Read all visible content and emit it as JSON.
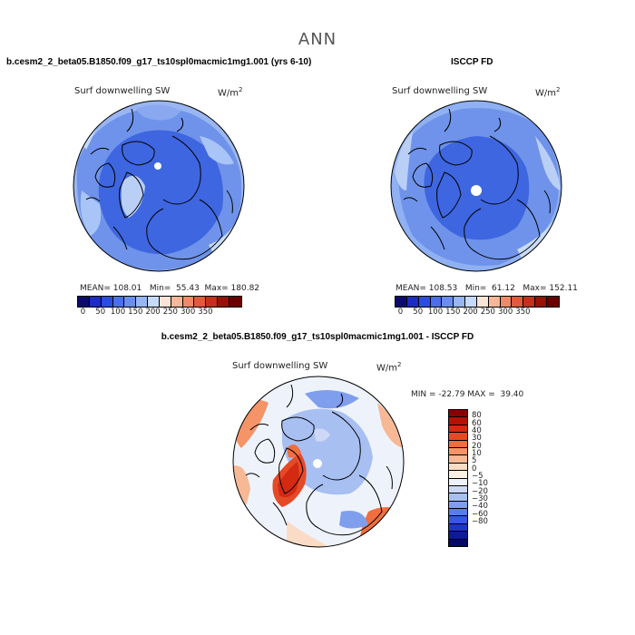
{
  "title": "ANN",
  "panels": [
    {
      "case_title": "b.cesm2_2_beta05.B1850.f09_g17_ts10spl0macmic1mg1.001 (yrs 6-10)",
      "variable": "Surf downwelling SW",
      "units_base": "W/m",
      "units_exp": "2",
      "stats": "MEAN= 108.01   Min=  55.43  Max= 180.82"
    },
    {
      "case_title": "ISCCP FD",
      "variable": "Surf downwelling SW",
      "units_base": "W/m",
      "units_exp": "2",
      "stats": "MEAN= 108.53   Min=  61.12   Max= 152.11"
    }
  ],
  "diff": {
    "case_title": "b.cesm2_2_beta05.B1850.f09_g17_ts10spl0macmic1mg1.001 - ISCCP FD",
    "variable": "Surf downwelling SW",
    "units_base": "W/m",
    "units_exp": "2",
    "stats": "MIN = -22.79 MAX =  39.40"
  },
  "colorbar_abs": {
    "colors": [
      "#0b0b6e",
      "#1c2bc0",
      "#2a4de0",
      "#4a6fe6",
      "#6a8ef0",
      "#98b6f4",
      "#c6dafa",
      "#fbe4d6",
      "#f7b798",
      "#ef8a68",
      "#e05a3c",
      "#c4301c",
      "#961206",
      "#6a0000"
    ],
    "ticks": [
      "0",
      "50",
      "100",
      "150",
      "200",
      "250",
      "300",
      "350"
    ]
  },
  "colorbar_diff": {
    "colors": [
      "#890000",
      "#b51204",
      "#d42a12",
      "#e54a26",
      "#f06e40",
      "#f49467",
      "#f7b896",
      "#fadcc6",
      "#fbf0e6",
      "#eef3fb",
      "#cdd8f6",
      "#a8bff2",
      "#7f9eee",
      "#5a7cea",
      "#3856e0",
      "#1f34c4",
      "#0d1a98",
      "#030a66"
    ],
    "ticks": [
      "80",
      "60",
      "40",
      "30",
      "20",
      "10",
      "5",
      "0",
      "−5",
      "−10",
      "−20",
      "−30",
      "−40",
      "−60",
      "−80"
    ]
  }
}
